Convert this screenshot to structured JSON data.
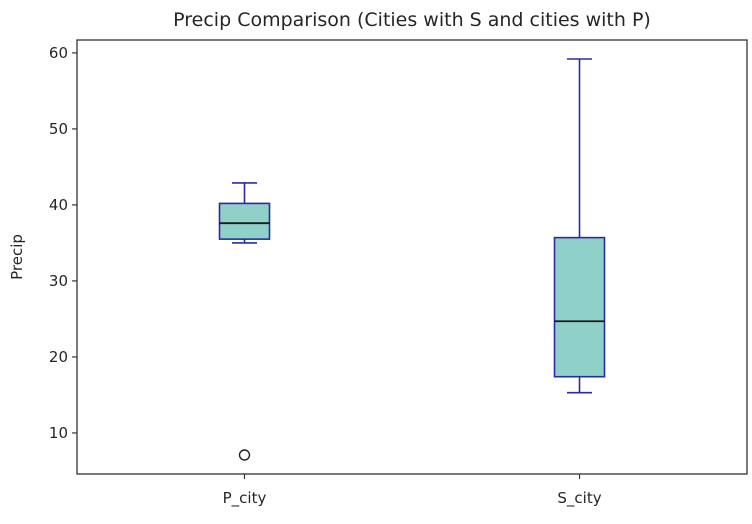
{
  "chart_data": {
    "type": "box",
    "title": "Precip Comparison (Cities with S and cities with P)",
    "xlabel": "",
    "ylabel": "Precip",
    "categories": [
      "P_city",
      "S_city"
    ],
    "boxes": [
      {
        "name": "P_city",
        "whisker_low": 35.0,
        "q1": 35.5,
        "median": 37.6,
        "q3": 40.2,
        "whisker_high": 42.9,
        "outliers": [
          7.1
        ]
      },
      {
        "name": "S_city",
        "whisker_low": 15.3,
        "q1": 17.4,
        "median": 24.7,
        "q3": 35.7,
        "whisker_high": 59.2,
        "outliers": []
      }
    ],
    "ylim": [
      4.6,
      61.7
    ],
    "yticks": [
      10,
      20,
      30,
      40,
      50,
      60
    ],
    "grid": false,
    "colors": {
      "box_fill": "#8fd1c8",
      "box_edge": "#2a2ba0",
      "median": "#1a1a1a",
      "axis": "#333333"
    }
  }
}
